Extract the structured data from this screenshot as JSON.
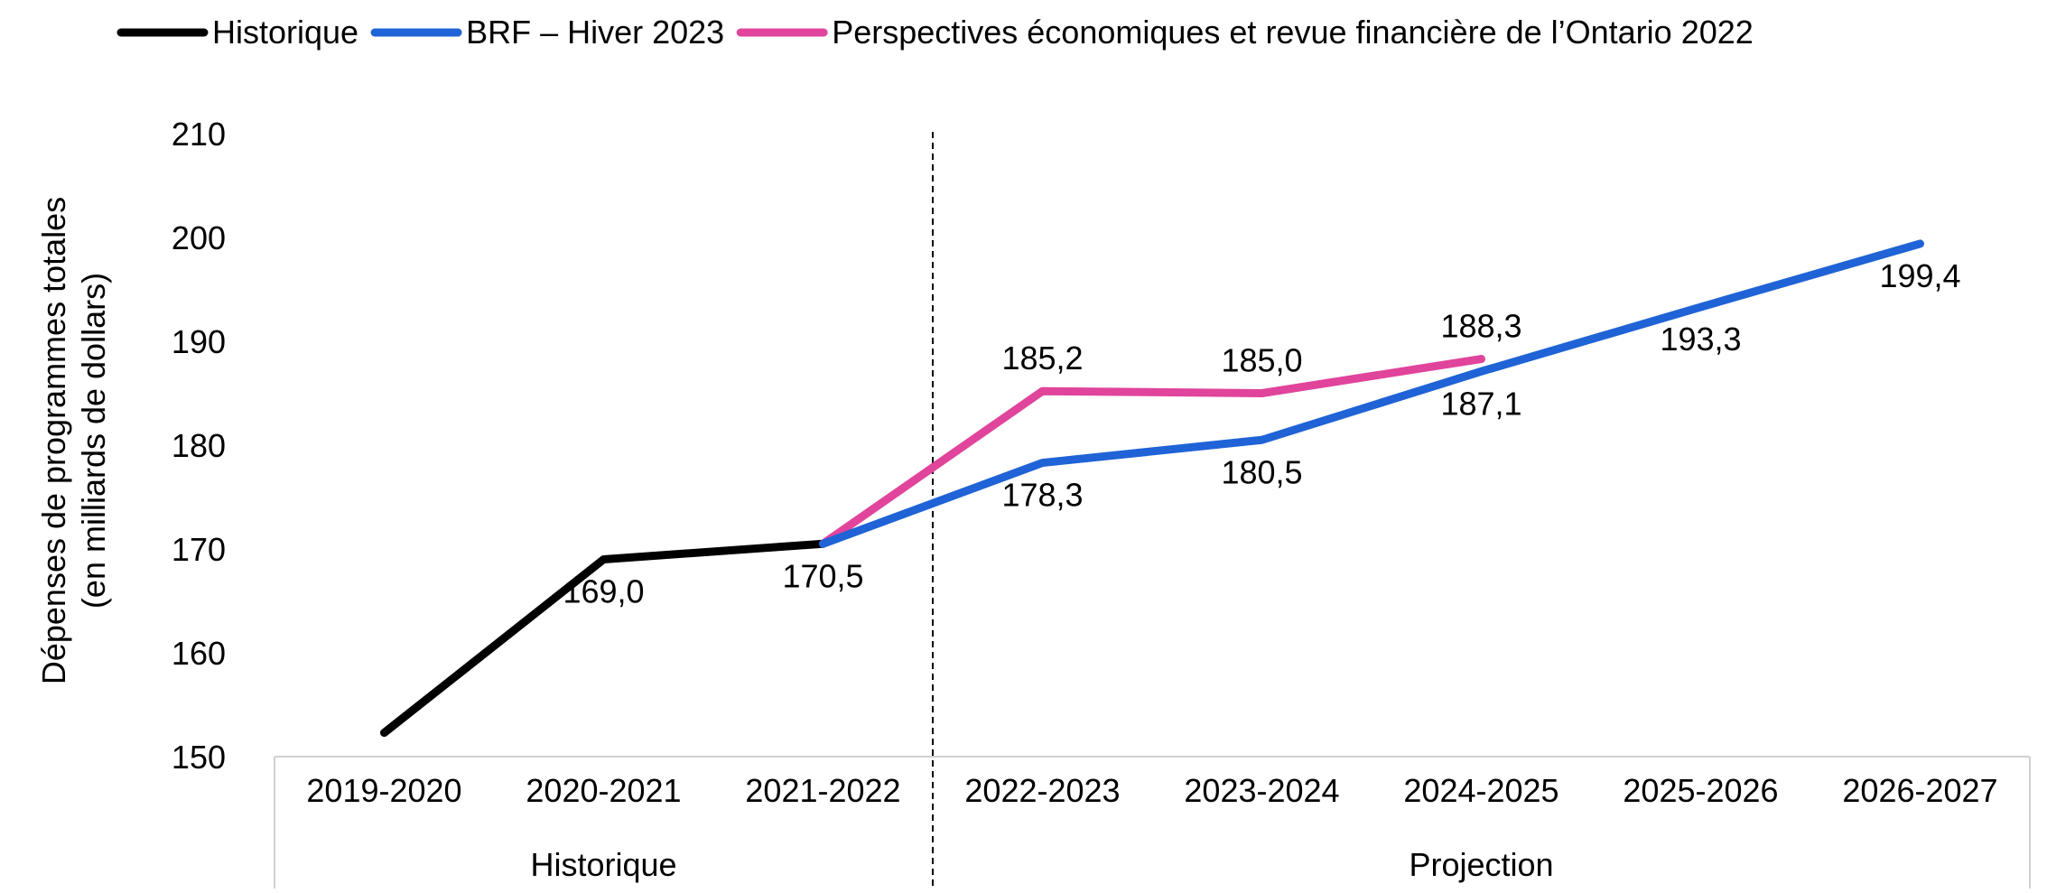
{
  "chart_data": {
    "type": "line",
    "title": "",
    "ylabel_line1": "Dépenses de programmes totales",
    "ylabel_line2": "(en milliards de dollars)",
    "xlabel": "",
    "ylim": [
      150,
      210
    ],
    "yticks": [
      "150",
      "160",
      "170",
      "180",
      "190",
      "200",
      "210"
    ],
    "categories": [
      "2019-2020",
      "2020-2021",
      "2021-2022",
      "2022-2023",
      "2023-2024",
      "2024-2025",
      "2025-2026",
      "2026-2027"
    ],
    "groups": [
      {
        "label": "Historique",
        "categories": [
          "2019-2020",
          "2020-2021",
          "2021-2022"
        ]
      },
      {
        "label": "Projection",
        "categories": [
          "2022-2023",
          "2023-2024",
          "2024-2025",
          "2025-2026",
          "2026-2027"
        ]
      }
    ],
    "divider_between": [
      "2021-2022",
      "2022-2023"
    ],
    "grid": false,
    "legend_position": "top",
    "series": [
      {
        "name": "Historique",
        "color": "#000000",
        "values": [
          152.3,
          169.0,
          170.5,
          null,
          null,
          null,
          null,
          null
        ],
        "labels": [
          "",
          "169,0",
          "170,5",
          "",
          "",
          "",
          "",
          ""
        ]
      },
      {
        "name": "BRF – Hiver 2023",
        "color": "#1F63D6",
        "values": [
          null,
          null,
          170.5,
          178.3,
          180.5,
          187.1,
          193.3,
          199.4
        ],
        "labels": [
          "",
          "",
          "",
          "178,3",
          "180,5",
          "187,1",
          "193,3",
          "199,4"
        ]
      },
      {
        "name": "Perspectives économiques et revue financière de l’Ontario 2022",
        "color": "#E0449B",
        "values": [
          null,
          null,
          170.5,
          185.2,
          185.0,
          188.3,
          null,
          null
        ],
        "labels": [
          "",
          "",
          "",
          "185,2",
          "185,0",
          "188,3",
          "",
          ""
        ]
      }
    ]
  }
}
